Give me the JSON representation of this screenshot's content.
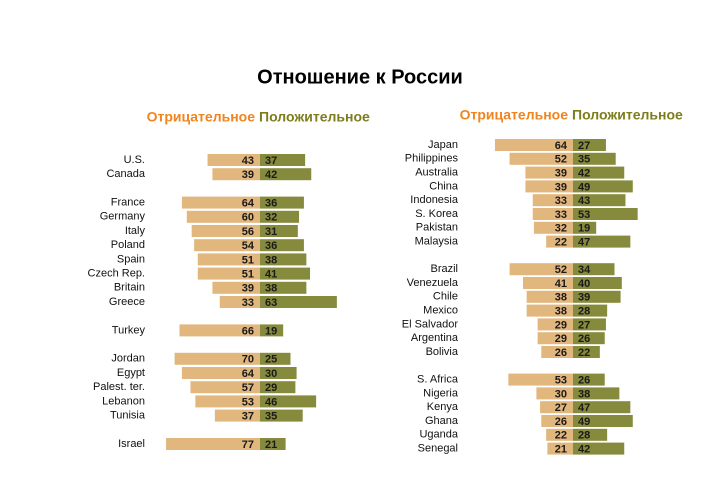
{
  "title": "Отношение к России",
  "chart_data": [
    {
      "type": "diverging-bar",
      "categories": [
        "U.S.",
        "Canada",
        null,
        "France",
        "Germany",
        "Italy",
        "Poland",
        "Spain",
        "Czech Rep.",
        "Britain",
        "Greece",
        null,
        "Turkey",
        null,
        "Jordan",
        "Egypt",
        "Palest. ter.",
        "Lebanon",
        "Tunisia",
        null,
        "Israel"
      ],
      "series": [
        {
          "name": "Отрицательное",
          "color": "#e2b77e",
          "legend_color": "#f0841e",
          "values": [
            43,
            39,
            null,
            64,
            60,
            56,
            54,
            51,
            51,
            39,
            33,
            null,
            66,
            null,
            70,
            64,
            57,
            53,
            37,
            null,
            77
          ]
        },
        {
          "name": "Положительное",
          "color": "#868a3c",
          "legend_color": "#7d7d1c",
          "values": [
            37,
            42,
            null,
            36,
            32,
            31,
            36,
            38,
            41,
            38,
            63,
            null,
            19,
            null,
            25,
            30,
            29,
            46,
            35,
            null,
            21
          ]
        }
      ]
    },
    {
      "type": "diverging-bar",
      "categories": [
        "Japan",
        "Philippines",
        "Australia",
        "China",
        "Indonesia",
        "S. Korea",
        "Pakistan",
        "Malaysia",
        null,
        "Brazil",
        "Venezuela",
        "Chile",
        "Mexico",
        "El Salvador",
        "Argentina",
        "Bolivia",
        null,
        "S. Africa",
        "Nigeria",
        "Kenya",
        "Ghana",
        "Uganda",
        "Senegal"
      ],
      "series": [
        {
          "name": "Отрицательное",
          "color": "#e2b77e",
          "legend_color": "#f0841e",
          "values": [
            64,
            52,
            39,
            39,
            33,
            33,
            32,
            22,
            null,
            52,
            41,
            38,
            38,
            29,
            29,
            26,
            null,
            53,
            30,
            27,
            26,
            22,
            21
          ]
        },
        {
          "name": "Положительное",
          "color": "#868a3c",
          "legend_color": "#7d7d1c",
          "values": [
            27,
            35,
            42,
            49,
            43,
            53,
            19,
            47,
            null,
            34,
            40,
            39,
            28,
            27,
            26,
            22,
            null,
            26,
            38,
            47,
            49,
            28,
            42
          ]
        }
      ]
    }
  ]
}
